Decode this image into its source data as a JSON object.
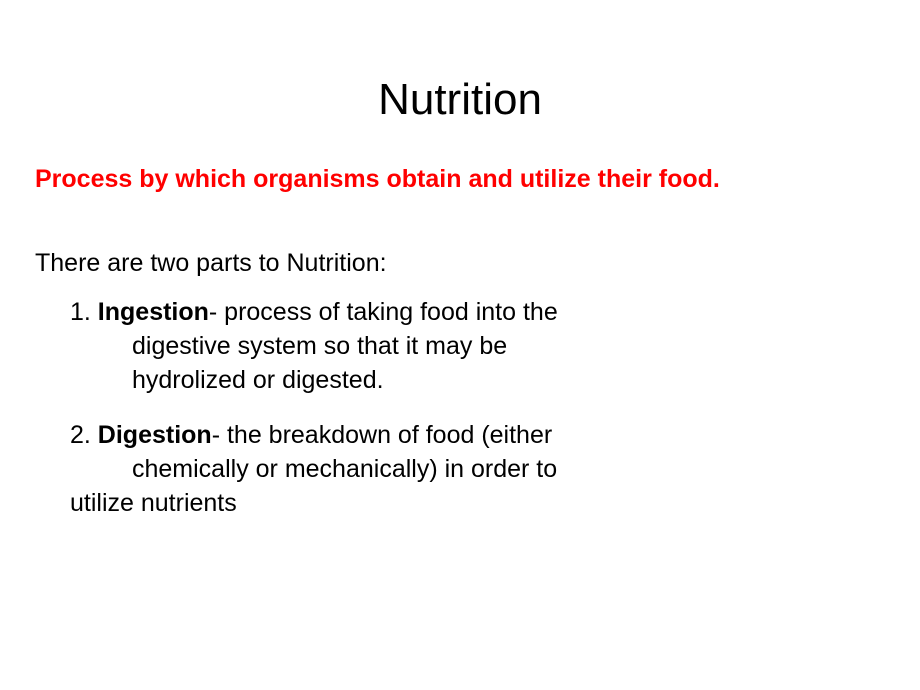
{
  "colors": {
    "definition": "#ff0000",
    "text": "#000000",
    "background": "#ffffff"
  },
  "typography": {
    "title_fontsize": 44,
    "body_fontsize": 25,
    "title_weight": 400,
    "definition_weight": 700,
    "term_weight": 700
  },
  "title": "Nutrition",
  "definition": "Process by which organisms obtain and utilize their food.",
  "intro": "There are two parts to Nutrition:",
  "items": [
    {
      "number": "1. ",
      "term": "Ingestion",
      "rest_line1": "- process of taking food into the",
      "cont1": "digestive system so that it may be",
      "cont2": "hydrolized or digested."
    },
    {
      "number": "2. ",
      "term": "Digestion",
      "rest_line1": "- the breakdown of food (either",
      "cont1": "chemically or mechanically) in order to",
      "cont2_outdent": "utilize nutrients"
    }
  ]
}
